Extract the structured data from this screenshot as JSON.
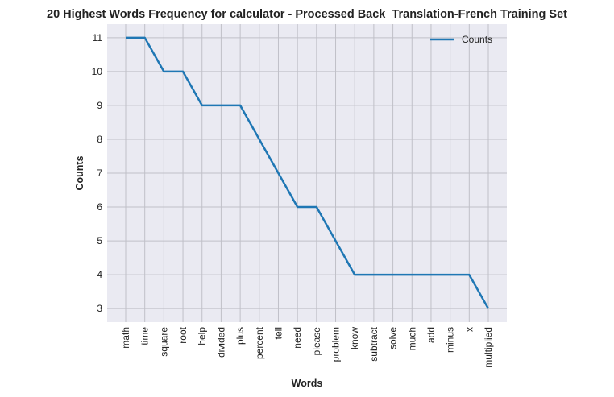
{
  "chart_data": {
    "type": "line",
    "title": "20 Highest Words Frequency for calculator - Processed Back_Translation-French Training Set",
    "xlabel": "Words",
    "ylabel": "Counts",
    "categories": [
      "math",
      "time",
      "square",
      "root",
      "help",
      "divided",
      "plus",
      "percent",
      "tell",
      "need",
      "please",
      "problem",
      "know",
      "subtract",
      "solve",
      "much",
      "add",
      "minus",
      "x",
      "multiplied"
    ],
    "series": [
      {
        "name": "Counts",
        "values": [
          11,
          11,
          10,
          10,
          9,
          9,
          9,
          8,
          7,
          6,
          6,
          5,
          4,
          4,
          4,
          4,
          4,
          4,
          4,
          3
        ],
        "color": "#1f77b4"
      }
    ],
    "yticks": [
      "3",
      "4",
      "5",
      "6",
      "7",
      "8",
      "9",
      "10",
      "11"
    ],
    "ylim": [
      2.6,
      11.4
    ],
    "grid": true,
    "legend_position": "top-right",
    "background": "#eaeaf2",
    "grid_color": "#c0c0c8"
  }
}
